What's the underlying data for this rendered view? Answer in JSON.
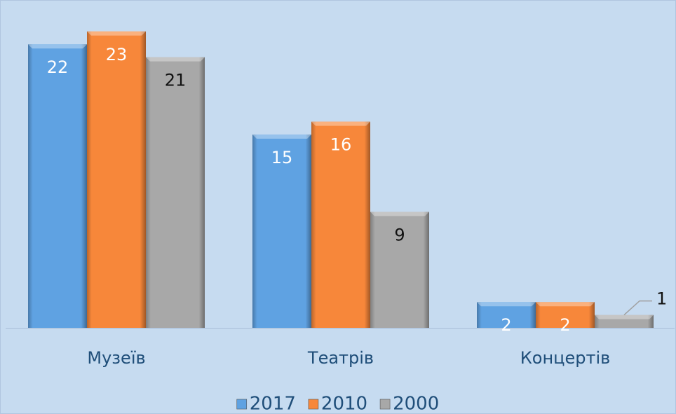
{
  "chart_data": {
    "type": "bar",
    "categories": [
      "Музеїв",
      "Театрів",
      "Концертів"
    ],
    "series": [
      {
        "name": "2017",
        "color": "#5fa2e2",
        "values": [
          22,
          15,
          2
        ]
      },
      {
        "name": "2010",
        "color": "#f7873a",
        "values": [
          23,
          16,
          2
        ]
      },
      {
        "name": "2000",
        "color": "#a8a8a8",
        "values": [
          21,
          9,
          1
        ]
      }
    ],
    "ylim": [
      0,
      25
    ],
    "legend": "bottom",
    "grid": false
  }
}
